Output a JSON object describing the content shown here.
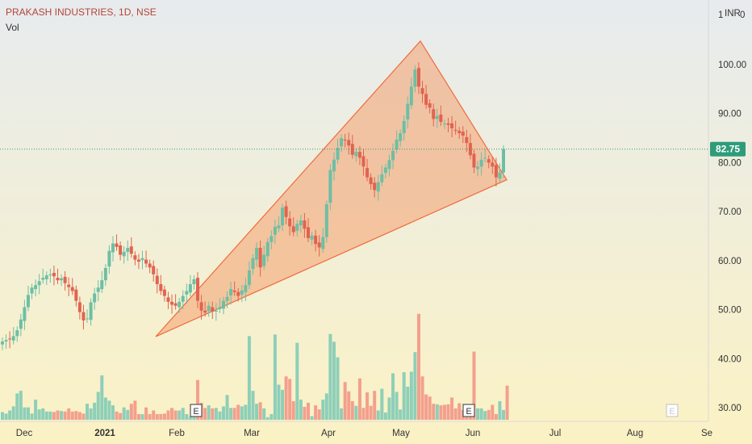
{
  "header": {
    "title": "PRAKASH INDUSTRIES, 1D, NSE",
    "vol_label": "Vol"
  },
  "price_axis": {
    "unit": "INR",
    "top_label": "1",
    "top_right": "0",
    "current_price": "82.75"
  },
  "earnings_marker": "E",
  "colors": {
    "up": "#6dbfa4",
    "down": "#e1634f",
    "pattern_fill": "#f4a070",
    "pattern_line": "#f06a3c",
    "price_line": "#2e9c7a",
    "vol_up": "#8ecfb8",
    "vol_down": "#f3a08e",
    "bg_top": "#e7ebee",
    "bg_bottom": "#fbf2c4"
  },
  "chart_data": {
    "type": "candlestick",
    "title": "PRAKASH INDUSTRIES, 1D, NSE",
    "y_ticks": [
      "30.00",
      "40.00",
      "50.00",
      "60.00",
      "70.00",
      "80.00",
      "90.00",
      "100.00"
    ],
    "y_tick_values": [
      30,
      40,
      50,
      60,
      70,
      80,
      90,
      100
    ],
    "x_ticks": [
      "Dec",
      "2021",
      "Feb",
      "Mar",
      "Apr",
      "May",
      "Jun",
      "Jul",
      "Aug",
      "Se"
    ],
    "ylim": [
      27,
      112
    ],
    "last_price": 82.75,
    "close_series": [
      43.5,
      43.8,
      44.0,
      44.6,
      45.8,
      48.0,
      50.5,
      53.0,
      54.5,
      55.0,
      55.8,
      56.5,
      57.0,
      57.2,
      56.8,
      56.0,
      56.4,
      55.4,
      54.6,
      53.8,
      51.8,
      49.5,
      47.8,
      48.2,
      51.5,
      53.3,
      54.5,
      56.0,
      58.5,
      62.0,
      63.5,
      62.8,
      61.2,
      61.8,
      62.6,
      61.4,
      60.2,
      59.8,
      60.5,
      59.4,
      58.6,
      57.2,
      55.2,
      53.8,
      52.8,
      51.6,
      51.0,
      50.8,
      51.6,
      52.8,
      53.8,
      55.2,
      56.2,
      51.8,
      49.8,
      49.4,
      50.8,
      49.6,
      49.8,
      50.5,
      51.8,
      52.6,
      54.2,
      53.6,
      52.8,
      53.9,
      55.0,
      58.0,
      60.5,
      62.6,
      58.6,
      61.2,
      63.8,
      65.0,
      66.9,
      67.2,
      70.8,
      68.9,
      67.0,
      65.8,
      67.5,
      68.2,
      66.5,
      64.6,
      65.1,
      63.4,
      62.7,
      64.8,
      71.5,
      78.5,
      80.6,
      83.0,
      85.0,
      84.6,
      83.5,
      81.6,
      82.2,
      81.0,
      79.2,
      77.0,
      75.6,
      74.4,
      76.0,
      77.6,
      79.0,
      80.5,
      82.4,
      84.7,
      86.0,
      88.5,
      92.0,
      95.5,
      99.0,
      95.5,
      94.0,
      91.8,
      91.2,
      88.9,
      89.5,
      88.3,
      88.0,
      87.7,
      87.0,
      86.5,
      86.0,
      85.5,
      84.0,
      81.5,
      79.0,
      79.2,
      80.6,
      81.0,
      80.0,
      79.2,
      77.0,
      78.0,
      82.75
    ],
    "volume_series": [
      1.5,
      1.2,
      1.8,
      2.6,
      5.1,
      5.6,
      2.4,
      2.4,
      1.2,
      3.9,
      2.0,
      2.2,
      1.6,
      1.6,
      1.5,
      1.8,
      1.7,
      1.6,
      2.2,
      1.6,
      1.7,
      1.5,
      1.2,
      3.1,
      2.2,
      3.3,
      5.4,
      8.6,
      4.3,
      3.7,
      2.8,
      1.6,
      1.3,
      2.4,
      1.9,
      3.1,
      3.7,
      1.1,
      1.1,
      2.4,
      1.1,
      1.8,
      1.1,
      1.1,
      1.2,
      1.8,
      2.3,
      1.8,
      1.8,
      2.3,
      1.1,
      0.6,
      0.6,
      7.7,
      3.3,
      2.3,
      2.8,
      2.2,
      2.3,
      1.6,
      2.6,
      4.8,
      2.3,
      2.3,
      2.9,
      2.6,
      2.9,
      16.2,
      5.6,
      3.1,
      3.4,
      2.2,
      0.5,
      1.1,
      16.5,
      6.8,
      5.8,
      8.4,
      7.9,
      3.6,
      14.9,
      3.9,
      2.5,
      3.3,
      0.7,
      2.8,
      2.0,
      3.9,
      5.1,
      16.6,
      15.1,
      12.1,
      2.2,
      7.3,
      5.5,
      3.6,
      2.7,
      8.0,
      2.3,
      5.3,
      2.7,
      5.6,
      1.8,
      6.0,
      1.4,
      4.3,
      9.0,
      5.4,
      2.0,
      9.2,
      6.4,
      9.3,
      13.1,
      20.5,
      8.4,
      4.9,
      4.5,
      3.1,
      3.0,
      2.8,
      2.9,
      3.0,
      4.3,
      2.2,
      3.2,
      1.9,
      2.5,
      1.5,
      13.2,
      2.2,
      2.2,
      1.7,
      1.9,
      2.9,
      1.1,
      3.6,
      1.9,
      6.6
    ],
    "triangle_pattern": {
      "apex_top": [
        104.5
      ],
      "low_left": 44.5,
      "low_right": 76.5
    }
  }
}
